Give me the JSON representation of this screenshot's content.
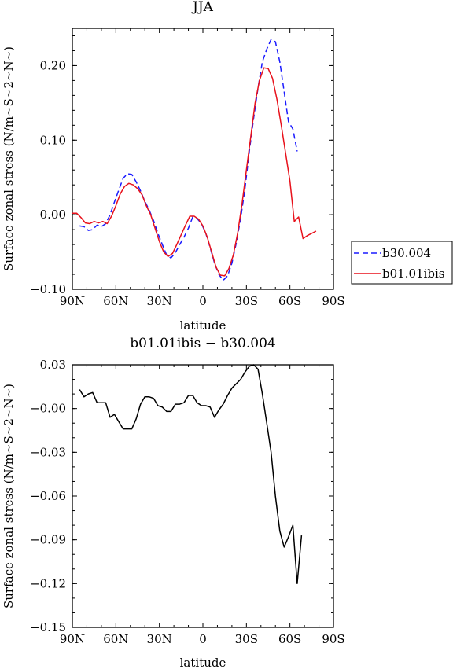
{
  "chart_data": [
    {
      "type": "line",
      "title": "JJA",
      "xlabel": "latitude",
      "ylabel": "Surface zonal stress (N/m~S~2~N~)",
      "xlim": [
        -90,
        90
      ],
      "ylim": [
        -0.1,
        0.25
      ],
      "xticks": [
        {
          "v": -90,
          "label": "90N"
        },
        {
          "v": -60,
          "label": "60N"
        },
        {
          "v": -30,
          "label": "30N"
        },
        {
          "v": 0,
          "label": "0"
        },
        {
          "v": 30,
          "label": "30S"
        },
        {
          "v": 60,
          "label": "60S"
        },
        {
          "v": 90,
          "label": "90S"
        }
      ],
      "yticks": [
        {
          "v": -0.1,
          "label": "−0.10"
        },
        {
          "v": 0.0,
          "label": "0.00"
        },
        {
          "v": 0.1,
          "label": "0.10"
        },
        {
          "v": 0.2,
          "label": "0.20"
        }
      ],
      "legend": {
        "placement": "right-outside"
      },
      "series": [
        {
          "name": "b30.004",
          "color": "#1a1aff",
          "dash": true,
          "points": [
            [
              -85,
              -0.015
            ],
            [
              -82,
              -0.016
            ],
            [
              -79,
              -0.021
            ],
            [
              -76,
              -0.02
            ],
            [
              -73,
              -0.014
            ],
            [
              -70,
              -0.016
            ],
            [
              -67,
              -0.012
            ],
            [
              -64,
              0.0
            ],
            [
              -61,
              0.017
            ],
            [
              -58,
              0.033
            ],
            [
              -55,
              0.049
            ],
            [
              -52,
              0.055
            ],
            [
              -49,
              0.054
            ],
            [
              -46,
              0.044
            ],
            [
              -43,
              0.032
            ],
            [
              -40,
              0.018
            ],
            [
              -37,
              0.006
            ],
            [
              -34,
              -0.008
            ],
            [
              -31,
              -0.025
            ],
            [
              -28,
              -0.04
            ],
            [
              -25,
              -0.054
            ],
            [
              -22,
              -0.058
            ],
            [
              -19,
              -0.051
            ],
            [
              -16,
              -0.04
            ],
            [
              -13,
              -0.03
            ],
            [
              -10,
              -0.018
            ],
            [
              -7,
              -0.003
            ],
            [
              -4,
              -0.005
            ],
            [
              -1,
              -0.012
            ],
            [
              2,
              -0.025
            ],
            [
              5,
              -0.044
            ],
            [
              8,
              -0.065
            ],
            [
              11,
              -0.08
            ],
            [
              14,
              -0.088
            ],
            [
              17,
              -0.082
            ],
            [
              20,
              -0.065
            ],
            [
              23,
              -0.038
            ],
            [
              26,
              -0.005
            ],
            [
              29,
              0.035
            ],
            [
              32,
              0.085
            ],
            [
              35,
              0.13
            ],
            [
              38,
              0.17
            ],
            [
              41,
              0.205
            ],
            [
              44,
              0.222
            ],
            [
              47,
              0.235
            ],
            [
              50,
              0.232
            ],
            [
              53,
              0.205
            ],
            [
              56,
              0.165
            ],
            [
              59,
              0.125
            ],
            [
              62,
              0.115
            ],
            [
              65,
              0.085
            ]
          ]
        },
        {
          "name": "b01.01ibis",
          "color": "#e8111b",
          "dash": false,
          "points": [
            [
              -90,
              0.002
            ],
            [
              -87,
              0.002
            ],
            [
              -84,
              -0.004
            ],
            [
              -81,
              -0.011
            ],
            [
              -78,
              -0.012
            ],
            [
              -75,
              -0.009
            ],
            [
              -72,
              -0.011
            ],
            [
              -69,
              -0.009
            ],
            [
              -66,
              -0.012
            ],
            [
              -63,
              -0.002
            ],
            [
              -60,
              0.012
            ],
            [
              -57,
              0.028
            ],
            [
              -54,
              0.038
            ],
            [
              -51,
              0.042
            ],
            [
              -48,
              0.04
            ],
            [
              -45,
              0.035
            ],
            [
              -42,
              0.027
            ],
            [
              -39,
              0.012
            ],
            [
              -36,
              0.0
            ],
            [
              -33,
              -0.018
            ],
            [
              -30,
              -0.036
            ],
            [
              -27,
              -0.05
            ],
            [
              -24,
              -0.056
            ],
            [
              -21,
              -0.052
            ],
            [
              -18,
              -0.04
            ],
            [
              -15,
              -0.027
            ],
            [
              -12,
              -0.014
            ],
            [
              -9,
              -0.002
            ],
            [
              -6,
              -0.002
            ],
            [
              -3,
              -0.006
            ],
            [
              0,
              -0.015
            ],
            [
              3,
              -0.03
            ],
            [
              6,
              -0.05
            ],
            [
              9,
              -0.07
            ],
            [
              12,
              -0.081
            ],
            [
              15,
              -0.082
            ],
            [
              18,
              -0.072
            ],
            [
              21,
              -0.054
            ],
            [
              24,
              -0.024
            ],
            [
              27,
              0.015
            ],
            [
              30,
              0.06
            ],
            [
              33,
              0.105
            ],
            [
              36,
              0.15
            ],
            [
              39,
              0.18
            ],
            [
              42,
              0.197
            ],
            [
              45,
              0.196
            ],
            [
              48,
              0.183
            ],
            [
              51,
              0.155
            ],
            [
              54,
              0.12
            ],
            [
              57,
              0.083
            ],
            [
              60,
              0.045
            ],
            [
              63,
              -0.009
            ],
            [
              66,
              -0.003
            ],
            [
              69,
              -0.032
            ],
            [
              72,
              -0.028
            ],
            [
              75,
              -0.025
            ],
            [
              78,
              -0.022
            ]
          ]
        }
      ]
    },
    {
      "type": "line",
      "title": "b01.01ibis − b30.004",
      "xlabel": "latitude",
      "ylabel": "Surface zonal stress (N/m~S~2~N~)",
      "xlim": [
        -90,
        90
      ],
      "ylim": [
        -0.15,
        0.03
      ],
      "xticks": [
        {
          "v": -90,
          "label": "90N"
        },
        {
          "v": -60,
          "label": "60N"
        },
        {
          "v": -30,
          "label": "30N"
        },
        {
          "v": 0,
          "label": "0"
        },
        {
          "v": 30,
          "label": "30S"
        },
        {
          "v": 60,
          "label": "60S"
        },
        {
          "v": 90,
          "label": "90S"
        }
      ],
      "yticks": [
        {
          "v": 0.03,
          "label": "0.03"
        },
        {
          "v": 0.0,
          "label": "−0.00"
        },
        {
          "v": -0.03,
          "label": "−0.03"
        },
        {
          "v": -0.06,
          "label": "−0.06"
        },
        {
          "v": -0.09,
          "label": "−0.09"
        },
        {
          "v": -0.12,
          "label": "−0.12"
        },
        {
          "v": -0.15,
          "label": "−0.15"
        }
      ],
      "series": [
        {
          "name": "",
          "color": "#000000",
          "dash": false,
          "points": [
            [
              -85,
              0.013
            ],
            [
              -82,
              0.008
            ],
            [
              -79,
              0.01
            ],
            [
              -76,
              0.011
            ],
            [
              -73,
              0.004
            ],
            [
              -70,
              0.004
            ],
            [
              -67,
              0.004
            ],
            [
              -64,
              -0.006
            ],
            [
              -61,
              -0.004
            ],
            [
              -58,
              -0.009
            ],
            [
              -55,
              -0.014
            ],
            [
              -52,
              -0.014
            ],
            [
              -49,
              -0.014
            ],
            [
              -46,
              -0.007
            ],
            [
              -43,
              0.003
            ],
            [
              -40,
              0.008
            ],
            [
              -37,
              0.008
            ],
            [
              -34,
              0.007
            ],
            [
              -31,
              0.002
            ],
            [
              -28,
              0.001
            ],
            [
              -25,
              -0.002
            ],
            [
              -22,
              -0.002
            ],
            [
              -19,
              0.003
            ],
            [
              -16,
              0.003
            ],
            [
              -13,
              0.004
            ],
            [
              -10,
              0.009
            ],
            [
              -7,
              0.009
            ],
            [
              -4,
              0.004
            ],
            [
              -1,
              0.002
            ],
            [
              2,
              0.002
            ],
            [
              5,
              0.001
            ],
            [
              8,
              -0.006
            ],
            [
              11,
              -0.001
            ],
            [
              14,
              0.003
            ],
            [
              17,
              0.009
            ],
            [
              20,
              0.014
            ],
            [
              23,
              0.017
            ],
            [
              26,
              0.02
            ],
            [
              29,
              0.025
            ],
            [
              32,
              0.029
            ],
            [
              35,
              0.03
            ],
            [
              38,
              0.027
            ],
            [
              41,
              0.01
            ],
            [
              44,
              -0.01
            ],
            [
              47,
              -0.03
            ],
            [
              50,
              -0.06
            ],
            [
              53,
              -0.084
            ],
            [
              56,
              -0.095
            ],
            [
              59,
              -0.088
            ],
            [
              62,
              -0.08
            ],
            [
              65,
              -0.12
            ],
            [
              68,
              -0.087
            ]
          ]
        }
      ]
    }
  ],
  "legend_items": [
    {
      "label": "b30.004",
      "color": "#1a1aff",
      "dash": true
    },
    {
      "label": "b01.01ibis",
      "color": "#e8111b",
      "dash": false
    }
  ]
}
